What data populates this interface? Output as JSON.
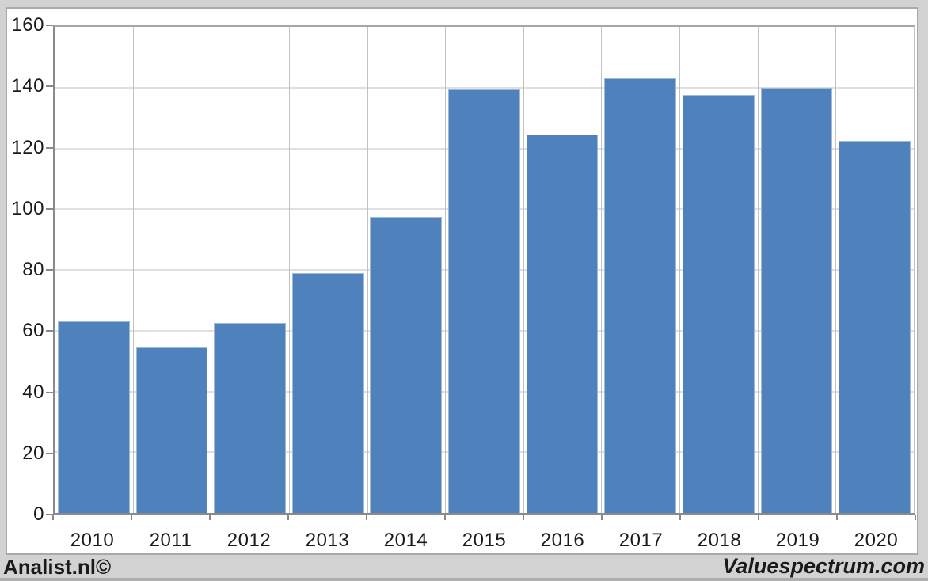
{
  "chart_data": {
    "type": "bar",
    "title": "",
    "xlabel": "",
    "ylabel": "",
    "categories": [
      "2010",
      "2011",
      "2012",
      "2013",
      "2014",
      "2015",
      "2016",
      "2017",
      "2018",
      "2019",
      "2020"
    ],
    "values": [
      63,
      54.5,
      62.5,
      79,
      97.5,
      139.5,
      124.5,
      143,
      137.5,
      140,
      122.5
    ],
    "ylim": [
      0,
      160
    ],
    "yticks": [
      0,
      20,
      40,
      60,
      80,
      100,
      120,
      140,
      160
    ],
    "grid": "horizontal-and-vertical",
    "legend_position": "none",
    "bar_color": "#4f81bd"
  },
  "footer": {
    "left_label": "Analist.nl©",
    "right_label": "Valuespectrum.com"
  },
  "colors": {
    "bar": "#4f81bd",
    "page_background": "#d2d2d2",
    "chart_background": "#ffffff",
    "gridline": "#c2c2c2",
    "axis": "#8a8a8a",
    "text": "#1a1a1a"
  }
}
